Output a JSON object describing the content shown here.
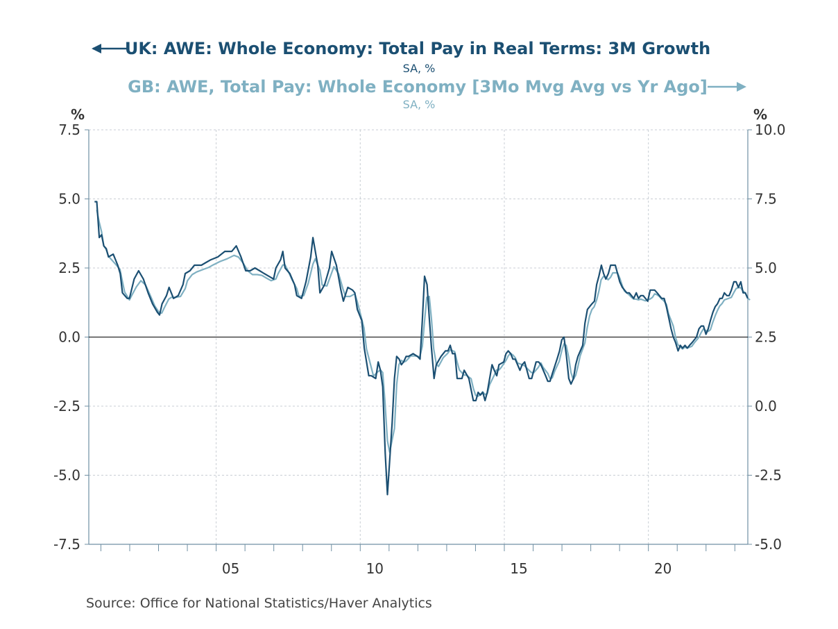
{
  "chart_data": {
    "type": "line",
    "title_series1": "UK: AWE: Whole Economy: Total Pay in Real Terms: 3M Growth",
    "subtitle_series1": "SA, %",
    "title_series2": "GB: AWE, Total Pay: Whole Economy [3Mo Mvg Avg vs Yr Ago]",
    "subtitle_series2": "SA, %",
    "left_axis_unit": "%",
    "right_axis_unit": "%",
    "left_ylim": [
      -7.5,
      7.5
    ],
    "right_ylim": [
      -5.0,
      10.0
    ],
    "left_ticks": [
      "7.5",
      "5.0",
      "2.5",
      "0.0",
      "-2.5",
      "-5.0",
      "-7.5"
    ],
    "right_ticks": [
      "10.0",
      "7.5",
      "5.0",
      "2.5",
      "0.0",
      "-2.5",
      "-5.0"
    ],
    "left_tick_values": [
      7.5,
      5.0,
      2.5,
      0.0,
      -2.5,
      -5.0,
      -7.5
    ],
    "right_tick_values": [
      10.0,
      7.5,
      5.0,
      2.5,
      0.0,
      -2.5,
      -5.0
    ],
    "x_range": [
      2000.58,
      2023.45
    ],
    "x_tick_labels": [
      "05",
      "10",
      "15",
      "20"
    ],
    "x_tick_values": [
      2005,
      2010,
      2015,
      2020
    ],
    "x_minor_years": [
      2001,
      2002,
      2003,
      2004,
      2005,
      2006,
      2007,
      2008,
      2009,
      2010,
      2011,
      2012,
      2013,
      2014,
      2015,
      2016,
      2017,
      2018,
      2019,
      2020,
      2021,
      2022,
      2023
    ],
    "source": "Source:  Office for National Statistics/Haver Analytics",
    "colors": {
      "series1": "#1b4f72",
      "series2": "#7fb0c2",
      "axis": "#6f8fa3",
      "grid": "#c8ced4",
      "zero": "#000000",
      "text": "#333333"
    },
    "series": [
      {
        "name": "UK: AWE: Whole Economy: Total Pay in Real Terms: 3M Growth",
        "axis": "left",
        "points": [
          [
            2000.75,
            4.9
          ],
          [
            2000.83,
            4.9
          ],
          [
            2000.92,
            3.6
          ],
          [
            2001.0,
            3.7
          ],
          [
            2001.08,
            3.3
          ],
          [
            2001.17,
            3.2
          ],
          [
            2001.25,
            2.9
          ],
          [
            2001.42,
            3.0
          ],
          [
            2001.58,
            2.6
          ],
          [
            2001.67,
            2.3
          ],
          [
            2001.75,
            1.6
          ],
          [
            2001.92,
            1.4
          ],
          [
            2002.0,
            1.4
          ],
          [
            2002.17,
            2.1
          ],
          [
            2002.33,
            2.4
          ],
          [
            2002.5,
            2.1
          ],
          [
            2002.67,
            1.6
          ],
          [
            2002.83,
            1.2
          ],
          [
            2003.0,
            0.9
          ],
          [
            2003.08,
            0.8
          ],
          [
            2003.17,
            1.2
          ],
          [
            2003.33,
            1.5
          ],
          [
            2003.42,
            1.8
          ],
          [
            2003.58,
            1.4
          ],
          [
            2003.75,
            1.5
          ],
          [
            2003.92,
            1.9
          ],
          [
            2004.0,
            2.3
          ],
          [
            2004.17,
            2.4
          ],
          [
            2004.33,
            2.6
          ],
          [
            2004.58,
            2.6
          ],
          [
            2004.75,
            2.7
          ],
          [
            2004.92,
            2.8
          ],
          [
            2005.17,
            2.9
          ],
          [
            2005.42,
            3.1
          ],
          [
            2005.67,
            3.1
          ],
          [
            2005.83,
            3.3
          ],
          [
            2006.0,
            2.9
          ],
          [
            2006.17,
            2.4
          ],
          [
            2006.33,
            2.4
          ],
          [
            2006.5,
            2.5
          ],
          [
            2006.67,
            2.4
          ],
          [
            2006.83,
            2.3
          ],
          [
            2007.0,
            2.2
          ],
          [
            2007.17,
            2.1
          ],
          [
            2007.25,
            2.5
          ],
          [
            2007.42,
            2.8
          ],
          [
            2007.5,
            3.1
          ],
          [
            2007.58,
            2.5
          ],
          [
            2007.75,
            2.3
          ],
          [
            2007.92,
            1.9
          ],
          [
            2008.0,
            1.5
          ],
          [
            2008.17,
            1.4
          ],
          [
            2008.33,
            2.0
          ],
          [
            2008.5,
            2.9
          ],
          [
            2008.58,
            3.6
          ],
          [
            2008.75,
            2.6
          ],
          [
            2008.83,
            1.6
          ],
          [
            2009.0,
            1.9
          ],
          [
            2009.17,
            2.5
          ],
          [
            2009.25,
            3.1
          ],
          [
            2009.42,
            2.6
          ],
          [
            2009.58,
            1.7
          ],
          [
            2009.67,
            1.3
          ],
          [
            2009.83,
            1.8
          ],
          [
            2010.0,
            1.7
          ],
          [
            2010.08,
            1.6
          ],
          [
            2010.17,
            1.0
          ],
          [
            2010.33,
            0.6
          ],
          [
            2010.42,
            -0.4
          ],
          [
            2010.58,
            -1.4
          ],
          [
            2010.67,
            -1.4
          ],
          [
            2010.83,
            -1.5
          ],
          [
            2010.92,
            -0.9
          ],
          [
            2011.0,
            -1.2
          ],
          [
            2011.08,
            -1.8
          ],
          [
            2011.17,
            -4.2
          ],
          [
            2011.25,
            -5.7
          ],
          [
            2011.42,
            -3.1
          ],
          [
            2011.5,
            -1.5
          ],
          [
            2011.58,
            -0.7
          ],
          [
            2011.67,
            -0.8
          ],
          [
            2011.75,
            -1.0
          ],
          [
            2011.83,
            -0.9
          ],
          [
            2011.92,
            -0.7
          ],
          [
            2012.0,
            -0.7
          ],
          [
            2012.17,
            -0.6
          ],
          [
            2012.33,
            -0.7
          ],
          [
            2012.42,
            -0.8
          ],
          [
            2012.5,
            0.6
          ],
          [
            2012.58,
            2.2
          ],
          [
            2012.67,
            1.9
          ],
          [
            2012.75,
            0.7
          ],
          [
            2012.83,
            -0.4
          ],
          [
            2012.92,
            -1.5
          ],
          [
            2013.0,
            -1.0
          ],
          [
            2013.17,
            -0.7
          ],
          [
            2013.33,
            -0.5
          ],
          [
            2013.42,
            -0.5
          ],
          [
            2013.5,
            -0.3
          ],
          [
            2013.58,
            -0.6
          ],
          [
            2013.67,
            -0.6
          ],
          [
            2013.75,
            -1.5
          ],
          [
            2013.92,
            -1.5
          ],
          [
            2014.0,
            -1.2
          ],
          [
            2014.17,
            -1.5
          ],
          [
            2014.25,
            -1.9
          ],
          [
            2014.33,
            -2.3
          ],
          [
            2014.42,
            -2.3
          ],
          [
            2014.5,
            -2.0
          ],
          [
            2014.58,
            -2.1
          ],
          [
            2014.67,
            -2.0
          ],
          [
            2014.75,
            -2.3
          ],
          [
            2014.83,
            -2.0
          ],
          [
            2015.0,
            -1.0
          ],
          [
            2015.08,
            -1.2
          ],
          [
            2015.17,
            -1.4
          ],
          [
            2015.25,
            -1.0
          ],
          [
            2015.42,
            -0.9
          ],
          [
            2015.5,
            -0.6
          ],
          [
            2015.58,
            -0.5
          ],
          [
            2015.67,
            -0.6
          ],
          [
            2015.75,
            -0.8
          ],
          [
            2015.83,
            -0.8
          ],
          [
            2016.0,
            -1.2
          ],
          [
            2016.08,
            -1.0
          ],
          [
            2016.17,
            -0.9
          ],
          [
            2016.33,
            -1.5
          ],
          [
            2016.42,
            -1.5
          ],
          [
            2016.58,
            -0.9
          ],
          [
            2016.67,
            -0.9
          ],
          [
            2016.75,
            -1.0
          ],
          [
            2016.92,
            -1.4
          ],
          [
            2017.0,
            -1.6
          ],
          [
            2017.08,
            -1.6
          ],
          [
            2017.17,
            -1.3
          ],
          [
            2017.33,
            -0.8
          ],
          [
            2017.42,
            -0.5
          ],
          [
            2017.5,
            -0.1
          ],
          [
            2017.58,
            0.0
          ],
          [
            2017.67,
            -0.7
          ],
          [
            2017.75,
            -1.5
          ],
          [
            2017.83,
            -1.7
          ],
          [
            2017.92,
            -1.5
          ],
          [
            2018.0,
            -1.0
          ],
          [
            2018.08,
            -0.7
          ],
          [
            2018.25,
            -0.3
          ],
          [
            2018.33,
            0.5
          ],
          [
            2018.42,
            1.0
          ],
          [
            2018.5,
            1.1
          ],
          [
            2018.58,
            1.2
          ],
          [
            2018.67,
            1.3
          ],
          [
            2018.75,
            1.9
          ],
          [
            2018.83,
            2.2
          ],
          [
            2018.92,
            2.6
          ],
          [
            2019.0,
            2.3
          ],
          [
            2019.08,
            2.1
          ],
          [
            2019.17,
            2.3
          ],
          [
            2019.25,
            2.6
          ],
          [
            2019.42,
            2.6
          ],
          [
            2019.5,
            2.3
          ],
          [
            2019.58,
            2.0
          ],
          [
            2019.67,
            1.8
          ],
          [
            2019.83,
            1.6
          ],
          [
            2019.92,
            1.6
          ],
          [
            2020.0,
            1.5
          ],
          [
            2020.08,
            1.4
          ],
          [
            2020.17,
            1.6
          ],
          [
            2020.25,
            1.4
          ],
          [
            2020.33,
            1.5
          ],
          [
            2020.42,
            1.5
          ],
          [
            2020.58,
            1.3
          ],
          [
            2020.67,
            1.7
          ],
          [
            2020.75,
            1.7
          ],
          [
            2020.83,
            1.7
          ],
          [
            2020.92,
            1.6
          ],
          [
            2021.0,
            1.5
          ],
          [
            2021.08,
            1.4
          ],
          [
            2021.17,
            1.4
          ],
          [
            2021.25,
            1.1
          ],
          [
            2021.42,
            0.3
          ],
          [
            2021.5,
            0.0
          ],
          [
            2021.58,
            -0.2
          ],
          [
            2021.67,
            -0.5
          ],
          [
            2021.75,
            -0.3
          ],
          [
            2021.83,
            -0.4
          ],
          [
            2021.92,
            -0.3
          ],
          [
            2022.0,
            -0.4
          ],
          [
            2022.08,
            -0.3
          ],
          [
            2022.17,
            -0.2
          ],
          [
            2022.33,
            0.0
          ],
          [
            2022.42,
            0.3
          ],
          [
            2022.5,
            0.4
          ],
          [
            2022.58,
            0.4
          ],
          [
            2022.67,
            0.1
          ],
          [
            2022.75,
            0.3
          ],
          [
            2022.83,
            0.6
          ],
          [
            2022.92,
            0.9
          ],
          [
            2023.0,
            1.1
          ],
          [
            2023.08,
            1.2
          ],
          [
            2023.17,
            1.4
          ],
          [
            2023.25,
            1.4
          ],
          [
            2023.33,
            1.6
          ],
          [
            2023.42,
            1.5
          ],
          [
            2023.5,
            1.5
          ],
          [
            2023.58,
            1.7
          ],
          [
            2023.67,
            2.0
          ],
          [
            2023.75,
            2.0
          ],
          [
            2023.83,
            1.8
          ],
          [
            2023.92,
            2.0
          ],
          [
            2024.0,
            1.6
          ],
          [
            2024.08,
            1.6
          ],
          [
            2024.17,
            1.4
          ]
        ]
      },
      {
        "name": "GB: AWE, Total Pay: Whole Economy [3Mo Mvg Avg vs Yr Ago]",
        "axis": "right",
        "points": []
      }
    ]
  }
}
